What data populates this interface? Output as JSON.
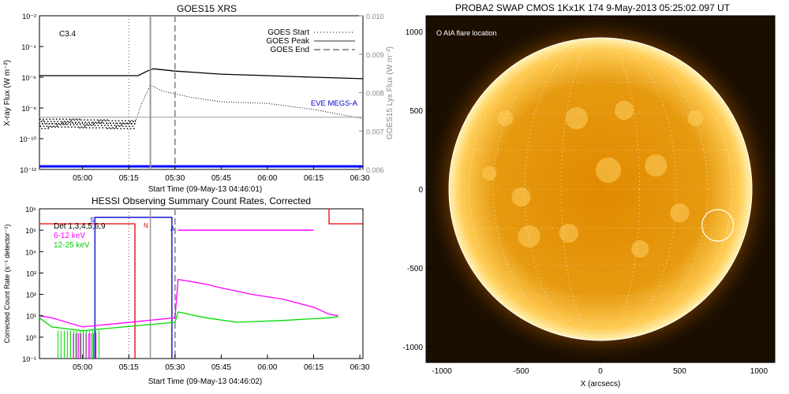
{
  "chart_data": [
    {
      "type": "line",
      "title": "GOES15 XRS",
      "xlabel": "Start Time (09-May-13 04:46:01)",
      "ylabel": "X-ray Flux (W m⁻²)",
      "ylabel_right": "GOES15 Lyx Flux (W m⁻²)",
      "xticks": [
        "05:00",
        "05:15",
        "05:30",
        "05:45",
        "06:00",
        "06:15",
        "06:30"
      ],
      "xlim": [
        "04:46",
        "06:31"
      ],
      "ylim": [
        1e-12,
        0.01
      ],
      "yscale": "log",
      "yticks_exp": [
        -2,
        -4,
        -6,
        -8,
        -10,
        -12
      ],
      "yticks_right": [
        "0.010",
        "0.009",
        "0.008",
        "0.007",
        "0.006"
      ],
      "class_label": "C3.4",
      "legend": [
        "GOES Start",
        "GOES Peak",
        "GOES End"
      ],
      "annotation": "EVE MEGS-A",
      "event_times": {
        "start": "05:15",
        "peak": "05:22",
        "end": "05:30"
      },
      "series": [
        {
          "name": "",
          "style": "black-solid",
          "x": [
            "04:46",
            "05:18",
            "05:21",
            "05:23",
            "05:30",
            "05:45",
            "06:00",
            "06:15",
            "06:31"
          ],
          "exp": [
            -5.9,
            -5.9,
            -5.6,
            -5.45,
            -5.6,
            -5.8,
            -5.9,
            -6.0,
            -6.1
          ]
        },
        {
          "name": "",
          "style": "black-dotted",
          "x": [
            "04:46",
            "05:17",
            "05:19",
            "05:22",
            "05:26",
            "05:35",
            "05:45",
            "06:00",
            "06:15",
            "06:31"
          ],
          "exp": [
            -9.0,
            -9.0,
            -7.8,
            -6.5,
            -6.9,
            -7.3,
            -7.6,
            -7.7,
            -8.1,
            -8.7
          ]
        },
        {
          "name": "",
          "style": "gray",
          "x": [
            "04:46",
            "06:31"
          ],
          "exp": [
            -8.6,
            -8.6
          ]
        },
        {
          "name": "EVE MEGS-A",
          "style": "blue",
          "x": [
            "04:46",
            "06:31"
          ],
          "exp": [
            -11.8,
            -11.8
          ]
        }
      ]
    },
    {
      "type": "line",
      "title": "HESSI Observing Summary Count Rates, Corrected",
      "xlabel": "Start Time (09-May-13 04:46:02)",
      "ylabel": "Corrected Count Rate (s⁻¹ detector⁻¹)",
      "xticks": [
        "05:00",
        "05:15",
        "05:30",
        "05:45",
        "06:00",
        "06:15",
        "06:30"
      ],
      "xlim": [
        "04:46",
        "06:31"
      ],
      "ylim": [
        0.1,
        1000000.0
      ],
      "yscale": "log",
      "ytick_labels": [
        "10⁶",
        "10⁵",
        "10⁴",
        "10³",
        "10²",
        "10¹",
        "10⁰",
        "10⁻¹"
      ],
      "legend_text": "Det 1,3,4,5,6,9",
      "legend": [
        {
          "name": "6-12 keV",
          "color": "#ff00ff"
        },
        {
          "name": "12-25 keV",
          "color": "#00ee00"
        }
      ],
      "markers": [
        "S",
        "N",
        "A"
      ],
      "series": [
        {
          "name": "6-12 keV",
          "x": [
            "04:46",
            "04:50",
            "05:00",
            "05:30",
            "05:31",
            "05:40",
            "05:45",
            "05:55",
            "06:05",
            "06:15",
            "06:20",
            "06:23"
          ],
          "values": [
            10,
            8,
            3,
            8,
            500,
            300,
            200,
            100,
            60,
            25,
            12,
            10
          ]
        },
        {
          "name": "12-25 keV",
          "x": [
            "04:46",
            "04:50",
            "05:00",
            "05:30",
            "05:31",
            "05:40",
            "05:50",
            "06:05",
            "06:20",
            "06:23"
          ],
          "values": [
            8,
            3,
            2,
            5,
            15,
            8,
            5,
            6,
            8,
            9
          ]
        }
      ]
    },
    {
      "type": "image",
      "title": "PROBA2 SWAP CMOS 1Kx1K 174  9-May-2013 05:25:02.097 UT",
      "xlabel": "X (arcsecs)",
      "ylabel": "",
      "xticks": [
        "-1000",
        "-500",
        "0",
        "500",
        "1000"
      ],
      "yticks": [
        "1000",
        "500",
        "0",
        "-500",
        "-1000"
      ],
      "xlim": [
        -1100,
        1100
      ],
      "ylim": [
        -1100,
        1100
      ],
      "legend_text": "O AIA flare location",
      "flare_location": {
        "x": 740,
        "y": -230
      }
    }
  ]
}
